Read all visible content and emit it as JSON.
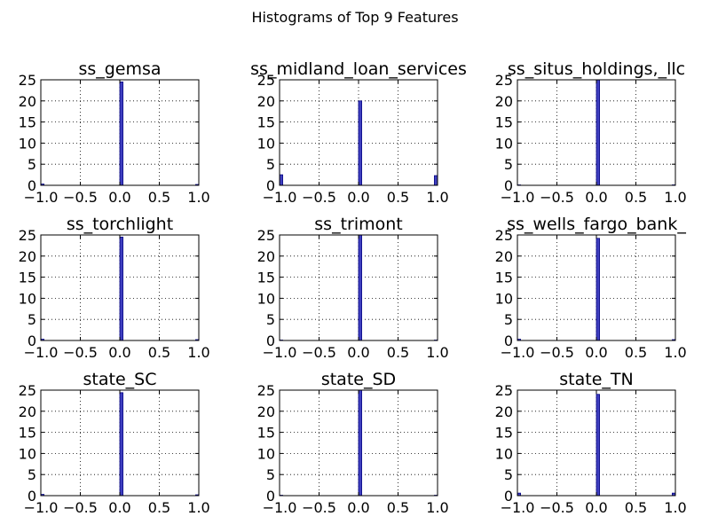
{
  "figure": {
    "title": "Histograms of Top 9 Features"
  },
  "style": {
    "bar_color": "#3f3fbf",
    "bar_edge": "#000080",
    "grid_color": "#000000",
    "text_color": "#000000"
  },
  "chart_data": [
    {
      "type": "bar",
      "title": "ss_gemsa",
      "xlim": [
        -1.0,
        1.0
      ],
      "ylim": [
        0,
        25
      ],
      "xticks": [
        "−1.0",
        "−0.5",
        "0.0",
        "0.5",
        "1.0"
      ],
      "yticks": [
        "0",
        "5",
        "10",
        "15",
        "20",
        "25"
      ],
      "grid": true,
      "bins": [
        {
          "x": -1.0,
          "count": 0.3
        },
        {
          "x": 0.0,
          "count": 24.5
        },
        {
          "x": 0.96,
          "count": 0.2
        }
      ]
    },
    {
      "type": "bar",
      "title": "ss_midland_loan_services",
      "xlim": [
        -1.0,
        1.0
      ],
      "ylim": [
        0,
        25
      ],
      "xticks": [
        "−1.0",
        "−0.5",
        "0.0",
        "0.5",
        "1.0"
      ],
      "yticks": [
        "0",
        "5",
        "10",
        "15",
        "20",
        "25"
      ],
      "grid": true,
      "bins": [
        {
          "x": -1.0,
          "count": 2.5
        },
        {
          "x": 0.0,
          "count": 20
        },
        {
          "x": 0.96,
          "count": 2.3
        }
      ]
    },
    {
      "type": "bar",
      "title": "ss_situs_holdings,_llc",
      "xlim": [
        -1.0,
        1.0
      ],
      "ylim": [
        0,
        25
      ],
      "xticks": [
        "−1.0",
        "−0.5",
        "0.0",
        "0.5",
        "1.0"
      ],
      "yticks": [
        "0",
        "5",
        "10",
        "15",
        "20",
        "25"
      ],
      "grid": true,
      "bins": [
        {
          "x": -1.0,
          "count": 0.1
        },
        {
          "x": 0.0,
          "count": 25
        },
        {
          "x": 0.96,
          "count": 0.1
        }
      ]
    },
    {
      "type": "bar",
      "title": "ss_torchlight",
      "xlim": [
        -1.0,
        1.0
      ],
      "ylim": [
        0,
        25
      ],
      "xticks": [
        "−1.0",
        "−0.5",
        "0.0",
        "0.5",
        "1.0"
      ],
      "yticks": [
        "0",
        "5",
        "10",
        "15",
        "20",
        "25"
      ],
      "grid": true,
      "bins": [
        {
          "x": -1.0,
          "count": 0.3
        },
        {
          "x": 0.0,
          "count": 24.5
        },
        {
          "x": 0.96,
          "count": 0.2
        }
      ]
    },
    {
      "type": "bar",
      "title": "ss_trimont",
      "xlim": [
        -1.0,
        1.0
      ],
      "ylim": [
        0,
        25
      ],
      "xticks": [
        "−1.0",
        "−0.5",
        "0.0",
        "0.5",
        "1.0"
      ],
      "yticks": [
        "0",
        "5",
        "10",
        "15",
        "20",
        "25"
      ],
      "grid": true,
      "bins": [
        {
          "x": -1.0,
          "count": 0.1
        },
        {
          "x": 0.0,
          "count": 25
        },
        {
          "x": 0.96,
          "count": 0.1
        }
      ]
    },
    {
      "type": "bar",
      "title": "ss_wells_fargo_bank_",
      "xlim": [
        -1.0,
        1.0
      ],
      "ylim": [
        0,
        25
      ],
      "xticks": [
        "−1.0",
        "−0.5",
        "0.0",
        "0.5",
        "1.0"
      ],
      "yticks": [
        "0",
        "5",
        "10",
        "15",
        "20",
        "25"
      ],
      "grid": true,
      "bins": [
        {
          "x": -1.0,
          "count": 0.3
        },
        {
          "x": 0.0,
          "count": 24.2
        },
        {
          "x": 0.96,
          "count": 0.2
        }
      ]
    },
    {
      "type": "bar",
      "title": "state_SC",
      "xlim": [
        -1.0,
        1.0
      ],
      "ylim": [
        0,
        25
      ],
      "xticks": [
        "−1.0",
        "−0.5",
        "0.0",
        "0.5",
        "1.0"
      ],
      "yticks": [
        "0",
        "5",
        "10",
        "15",
        "20",
        "25"
      ],
      "grid": true,
      "bins": [
        {
          "x": -1.0,
          "count": 0.3
        },
        {
          "x": 0.0,
          "count": 24.4
        },
        {
          "x": 0.96,
          "count": 0.2
        }
      ]
    },
    {
      "type": "bar",
      "title": "state_SD",
      "xlim": [
        -1.0,
        1.0
      ],
      "ylim": [
        0,
        25
      ],
      "xticks": [
        "−1.0",
        "−0.5",
        "0.0",
        "0.5",
        "1.0"
      ],
      "yticks": [
        "0",
        "5",
        "10",
        "15",
        "20",
        "25"
      ],
      "grid": true,
      "bins": [
        {
          "x": -1.0,
          "count": 0.1
        },
        {
          "x": 0.0,
          "count": 25
        },
        {
          "x": 0.96,
          "count": 0.1
        }
      ]
    },
    {
      "type": "bar",
      "title": "state_TN",
      "xlim": [
        -1.0,
        1.0
      ],
      "ylim": [
        0,
        25
      ],
      "xticks": [
        "−1.0",
        "−0.5",
        "0.0",
        "0.5",
        "1.0"
      ],
      "yticks": [
        "0",
        "5",
        "10",
        "15",
        "20",
        "25"
      ],
      "grid": true,
      "bins": [
        {
          "x": -1.0,
          "count": 0.6
        },
        {
          "x": 0.0,
          "count": 24
        },
        {
          "x": 0.96,
          "count": 0.6
        }
      ]
    }
  ]
}
